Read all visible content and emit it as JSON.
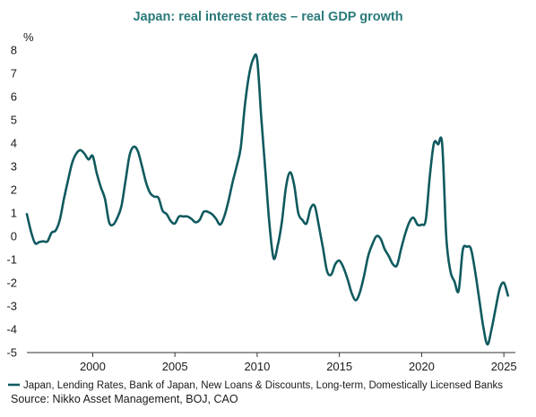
{
  "colors": {
    "series": "#0f5a5f",
    "axis": "#333333",
    "title": "#2a7a7a"
  },
  "chart_data": {
    "type": "line",
    "title": "Japan: real interest rates – real GDP growth",
    "unit_label": "%",
    "xlabel": "",
    "ylabel": "",
    "xlim": [
      1996.0,
      2025.7
    ],
    "ylim": [
      -5,
      8
    ],
    "x_ticks": [
      2000,
      2005,
      2010,
      2015,
      2020,
      2025
    ],
    "y_ticks": [
      8,
      7,
      6,
      5,
      4,
      3,
      2,
      1,
      0,
      -1,
      -2,
      -3,
      -4,
      -5
    ],
    "grid": false,
    "legend_position": "bottom-left",
    "series": [
      {
        "name": "Japan, Lending Rates, Bank of Japan, New Loans & Discounts, Long-term, Domestically Licensed Banks",
        "x": [
          1996.0,
          1996.25,
          1996.5,
          1996.75,
          1997.0,
          1997.25,
          1997.5,
          1997.75,
          1998.0,
          1998.25,
          1998.5,
          1998.75,
          1999.0,
          1999.25,
          1999.5,
          1999.75,
          2000.0,
          2000.25,
          2000.5,
          2000.75,
          2001.0,
          2001.25,
          2001.5,
          2001.75,
          2002.0,
          2002.25,
          2002.5,
          2002.75,
          2003.0,
          2003.25,
          2003.5,
          2003.75,
          2004.0,
          2004.25,
          2004.5,
          2004.75,
          2005.0,
          2005.25,
          2005.5,
          2005.75,
          2006.0,
          2006.25,
          2006.5,
          2006.75,
          2007.0,
          2007.25,
          2007.5,
          2007.75,
          2008.0,
          2008.25,
          2008.5,
          2008.75,
          2009.0,
          2009.25,
          2009.5,
          2009.75,
          2010.0,
          2010.25,
          2010.5,
          2010.75,
          2011.0,
          2011.25,
          2011.5,
          2011.75,
          2012.0,
          2012.25,
          2012.5,
          2012.75,
          2013.0,
          2013.25,
          2013.5,
          2013.75,
          2014.0,
          2014.25,
          2014.5,
          2014.75,
          2015.0,
          2015.25,
          2015.5,
          2015.75,
          2016.0,
          2016.25,
          2016.5,
          2016.75,
          2017.0,
          2017.25,
          2017.5,
          2017.75,
          2018.0,
          2018.25,
          2018.5,
          2018.75,
          2019.0,
          2019.25,
          2019.5,
          2019.75,
          2020.0,
          2020.25,
          2020.5,
          2020.75,
          2021.0,
          2021.25,
          2021.5,
          2021.75,
          2022.0,
          2022.25,
          2022.5,
          2022.75,
          2023.0,
          2023.25,
          2023.5,
          2023.75,
          2024.0,
          2024.25,
          2024.5,
          2024.75,
          2025.0,
          2025.25
        ],
        "values": [
          0.95,
          0.2,
          -0.3,
          -0.25,
          -0.22,
          -0.22,
          0.15,
          0.25,
          0.7,
          1.6,
          2.4,
          3.15,
          3.55,
          3.7,
          3.55,
          3.3,
          3.45,
          2.7,
          2.1,
          1.6,
          0.6,
          0.5,
          0.8,
          1.3,
          2.4,
          3.5,
          3.85,
          3.65,
          3.0,
          2.3,
          1.85,
          1.7,
          1.65,
          1.1,
          0.95,
          0.65,
          0.55,
          0.85,
          0.85,
          0.85,
          0.75,
          0.6,
          0.7,
          1.05,
          1.05,
          0.95,
          0.75,
          0.5,
          0.85,
          1.5,
          2.3,
          3.0,
          3.8,
          5.6,
          6.9,
          7.6,
          7.6,
          5.1,
          2.8,
          0.5,
          -0.95,
          -0.4,
          0.6,
          2.1,
          2.75,
          2.2,
          1.0,
          0.7,
          0.55,
          1.2,
          1.3,
          0.45,
          -0.5,
          -1.5,
          -1.65,
          -1.2,
          -1.05,
          -1.35,
          -1.85,
          -2.45,
          -2.75,
          -2.4,
          -1.7,
          -0.85,
          -0.35,
          0.0,
          -0.1,
          -0.55,
          -0.85,
          -1.2,
          -1.25,
          -0.55,
          0.1,
          0.6,
          0.8,
          0.5,
          0.5,
          0.7,
          2.6,
          4.0,
          3.95,
          3.95,
          -0.05,
          -1.5,
          -1.95,
          -2.35,
          -0.6,
          -0.45,
          -0.55,
          -1.5,
          -2.7,
          -3.9,
          -4.65,
          -4.0,
          -3.1,
          -2.25,
          -2.0,
          -2.55
        ]
      }
    ],
    "source": "Source: Nikko Asset Management, BOJ, CAO"
  }
}
